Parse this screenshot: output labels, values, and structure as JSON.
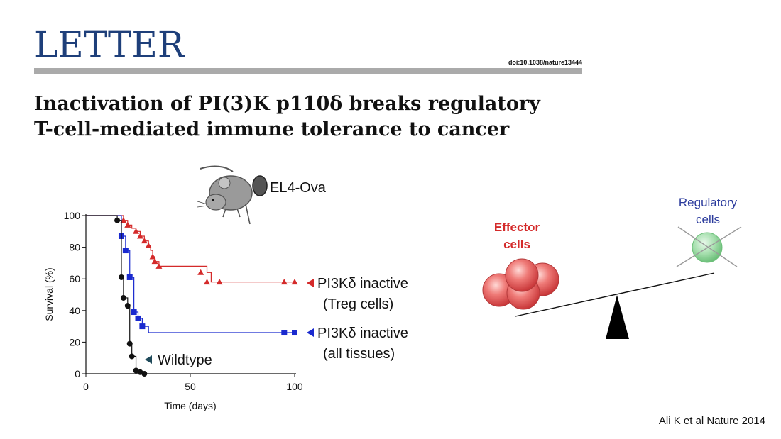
{
  "header": {
    "journal": "LETTER",
    "doi": "doi:10.1038/nature13444",
    "title_line1": "Inactivation of PI(3)K p110δ breaks regulatory",
    "title_line2": "T-cell-mediated immune tolerance to cancer"
  },
  "mouse_label": "EL4-Ova",
  "citation": "Ali K et al Nature 2014",
  "seesaw": {
    "effector_label_line1": "Effector",
    "effector_label_line2": "cells",
    "regulatory_label_line1": "Regulatory",
    "regulatory_label_line2": "cells",
    "effector_color": "#e8595c",
    "regulatory_color": "#8fd49a",
    "effector_label_color": "#d42a2a",
    "regulatory_label_color": "#2a3a9c"
  },
  "chart_data": {
    "type": "line",
    "xlabel": "Time (days)",
    "ylabel": "Survival (%)",
    "xlim": [
      0,
      100
    ],
    "ylim": [
      0,
      100
    ],
    "xticks": [
      0,
      50,
      100
    ],
    "yticks": [
      0,
      20,
      40,
      60,
      80,
      100
    ],
    "grid": false,
    "series": [
      {
        "name": "PI3Kδ inactive (Treg cells)",
        "legend_line1": "PI3Kδ inactive",
        "legend_line2": "(Treg cells)",
        "color": "#d42a2a",
        "marker": "triangle",
        "step_x": [
          0,
          17,
          18,
          20,
          22,
          24,
          26,
          28,
          30,
          31,
          32,
          33,
          35,
          55,
          58,
          60,
          100
        ],
        "step_y": [
          100,
          100,
          97,
          94,
          92,
          90,
          87,
          84,
          81,
          78,
          74,
          71,
          68,
          68,
          64,
          58,
          58
        ],
        "marker_x": [
          18,
          20,
          24,
          26,
          28,
          30,
          32,
          33,
          35,
          55,
          58,
          64,
          95,
          100
        ],
        "marker_y": [
          97,
          94,
          90,
          87,
          84,
          81,
          74,
          71,
          68,
          64,
          58,
          58,
          58,
          58
        ]
      },
      {
        "name": "PI3Kδ inactive (all tissues)",
        "legend_line1": "PI3Kδ inactive",
        "legend_line2": "(all tissues)",
        "color": "#1a2acf",
        "marker": "square",
        "step_x": [
          0,
          17,
          19,
          21,
          23,
          25,
          27,
          30,
          100
        ],
        "step_y": [
          100,
          87,
          78,
          61,
          39,
          35,
          30,
          26,
          26
        ],
        "marker_x": [
          17,
          19,
          21,
          23,
          25,
          27,
          95,
          100
        ],
        "marker_y": [
          87,
          78,
          61,
          39,
          35,
          30,
          26,
          26
        ]
      },
      {
        "name": "Wildtype",
        "legend_line1": "Wildtype",
        "color": "#111111",
        "marker": "circle",
        "step_x": [
          0,
          15,
          17,
          18,
          20,
          21,
          22,
          24,
          26,
          28
        ],
        "step_y": [
          100,
          97,
          61,
          48,
          43,
          19,
          11,
          2,
          1,
          0
        ],
        "marker_x": [
          15,
          17,
          18,
          20,
          21,
          22,
          24,
          26,
          28
        ],
        "marker_y": [
          97,
          61,
          48,
          43,
          19,
          11,
          2,
          1,
          0
        ]
      }
    ]
  }
}
